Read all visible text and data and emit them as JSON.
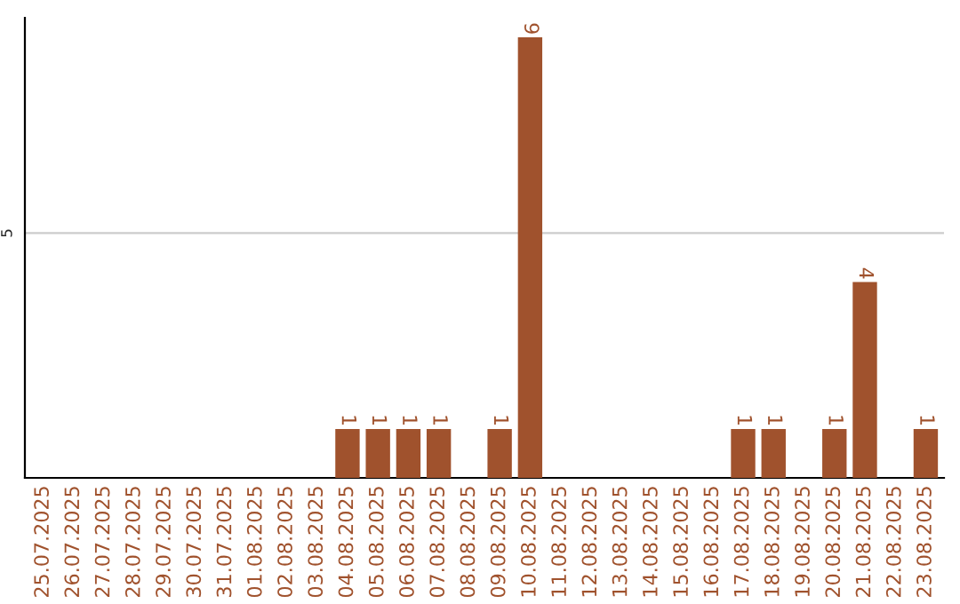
{
  "chart_data": {
    "type": "bar",
    "categories": [
      "25.07.2025",
      "26.07.2025",
      "27.07.2025",
      "28.07.2025",
      "29.07.2025",
      "30.07.2025",
      "31.07.2025",
      "01.08.2025",
      "02.08.2025",
      "03.08.2025",
      "04.08.2025",
      "05.08.2025",
      "06.08.2025",
      "07.08.2025",
      "08.08.2025",
      "09.08.2025",
      "10.08.2025",
      "11.08.2025",
      "12.08.2025",
      "13.08.2025",
      "14.08.2025",
      "15.08.2025",
      "16.08.2025",
      "17.08.2025",
      "18.08.2025",
      "19.08.2025",
      "20.08.2025",
      "21.08.2025",
      "22.08.2025",
      "23.08.2025"
    ],
    "values": [
      0,
      0,
      0,
      0,
      0,
      0,
      0,
      0,
      0,
      0,
      1,
      1,
      1,
      1,
      0,
      1,
      9,
      0,
      0,
      0,
      0,
      0,
      0,
      1,
      1,
      0,
      1,
      4,
      0,
      1
    ],
    "value_labels": [
      null,
      null,
      null,
      null,
      null,
      null,
      null,
      null,
      null,
      null,
      "1",
      "1",
      "1",
      "1",
      null,
      "1",
      "9",
      null,
      null,
      null,
      null,
      null,
      null,
      "1",
      "1",
      null,
      "1",
      "4",
      null,
      "1"
    ],
    "color": "#a0522d",
    "ylim": [
      0,
      9.4
    ],
    "yticks": [
      5
    ],
    "grid": "y"
  }
}
